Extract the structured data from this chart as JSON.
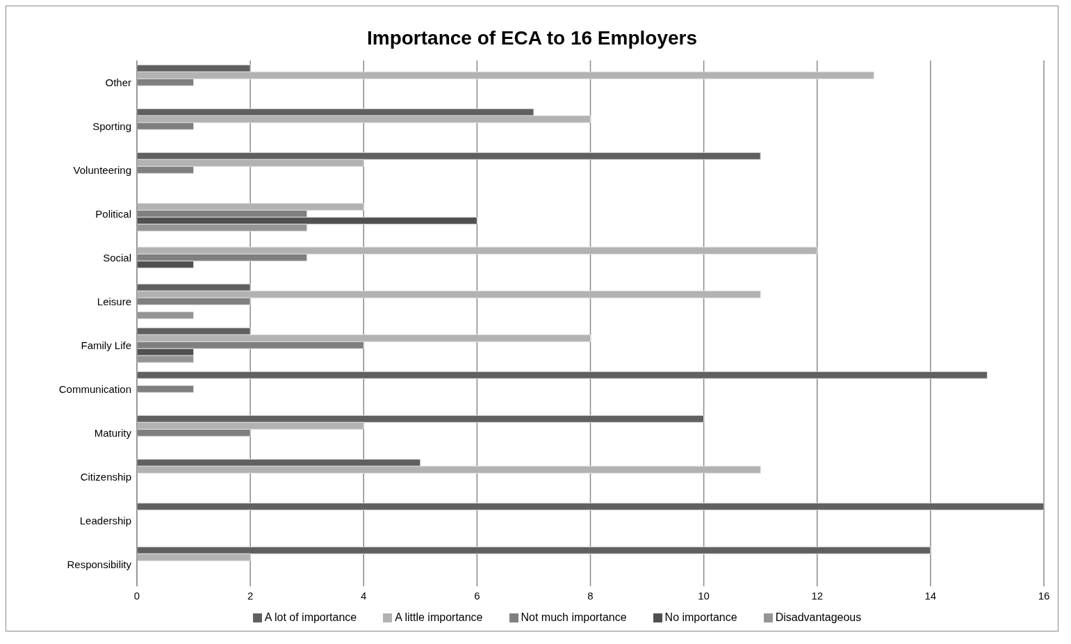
{
  "chart_data": {
    "type": "bar",
    "orientation": "horizontal",
    "title": "Importance of ECA to 16 Employers",
    "categories": [
      "Other",
      "Sporting",
      "Volunteering",
      "Political",
      "Social",
      "Leisure",
      "Family Life",
      "Communication",
      "Maturity",
      "Citizenship",
      "Leadership",
      "Responsibility"
    ],
    "series": [
      {
        "name": "A lot of importance",
        "color": "#606060",
        "values": [
          2,
          7,
          11,
          0,
          0,
          2,
          2,
          15,
          10,
          5,
          16,
          14
        ]
      },
      {
        "name": "A little importance",
        "color": "#b2b2b2",
        "values": [
          13,
          8,
          4,
          4,
          12,
          11,
          8,
          0,
          4,
          11,
          0,
          2
        ]
      },
      {
        "name": "Not much importance",
        "color": "#7f7f7f",
        "values": [
          1,
          1,
          1,
          3,
          3,
          2,
          4,
          1,
          2,
          0,
          0,
          0
        ]
      },
      {
        "name": "No importance",
        "color": "#505050",
        "values": [
          0,
          0,
          0,
          6,
          1,
          0,
          1,
          0,
          0,
          0,
          0,
          0
        ]
      },
      {
        "name": "Disadvantageous",
        "color": "#959595",
        "values": [
          0,
          0,
          0,
          3,
          0,
          1,
          1,
          0,
          0,
          0,
          0,
          0
        ]
      }
    ],
    "xlim": [
      0,
      16
    ],
    "xticks": [
      0,
      2,
      4,
      6,
      8,
      10,
      12,
      14,
      16
    ],
    "grid": "x",
    "legend": "bottom"
  }
}
